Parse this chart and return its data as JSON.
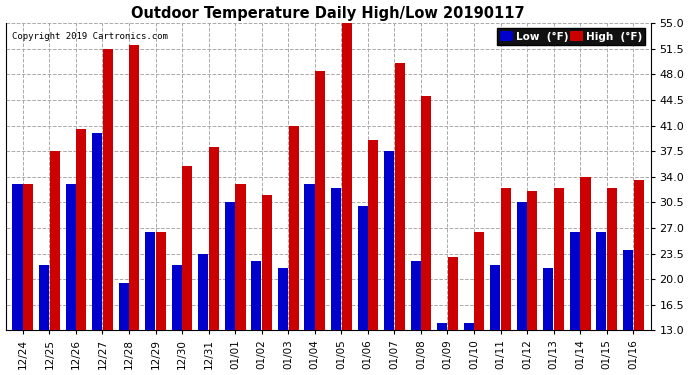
{
  "title": "Outdoor Temperature Daily High/Low 20190117",
  "copyright": "Copyright 2019 Cartronics.com",
  "legend_low": "Low  (°F)",
  "legend_high": "High  (°F)",
  "low_color": "#0000cc",
  "high_color": "#cc0000",
  "background_color": "#ffffff",
  "plot_bg_color": "#ffffff",
  "ylim": [
    13.0,
    55.0
  ],
  "ybase": 13.0,
  "yticks": [
    13.0,
    16.5,
    20.0,
    23.5,
    27.0,
    30.5,
    34.0,
    37.5,
    41.0,
    44.5,
    48.0,
    51.5,
    55.0
  ],
  "dates": [
    "12/24",
    "12/25",
    "12/26",
    "12/27",
    "12/28",
    "12/29",
    "12/30",
    "12/31",
    "01/01",
    "01/02",
    "01/03",
    "01/04",
    "01/05",
    "01/06",
    "01/07",
    "01/08",
    "01/09",
    "01/10",
    "01/11",
    "01/12",
    "01/13",
    "01/14",
    "01/15",
    "01/16"
  ],
  "highs": [
    33.0,
    37.5,
    40.5,
    51.5,
    52.0,
    26.5,
    35.5,
    38.0,
    33.0,
    31.5,
    41.0,
    48.5,
    55.0,
    39.0,
    49.5,
    45.0,
    23.0,
    26.5,
    32.5,
    32.0,
    32.5,
    34.0,
    32.5,
    33.5
  ],
  "lows": [
    33.0,
    22.0,
    33.0,
    40.0,
    19.5,
    26.5,
    22.0,
    23.5,
    30.5,
    22.5,
    21.5,
    33.0,
    32.5,
    30.0,
    37.5,
    22.5,
    14.0,
    14.0,
    22.0,
    30.5,
    21.5,
    26.5,
    26.5,
    24.0
  ]
}
